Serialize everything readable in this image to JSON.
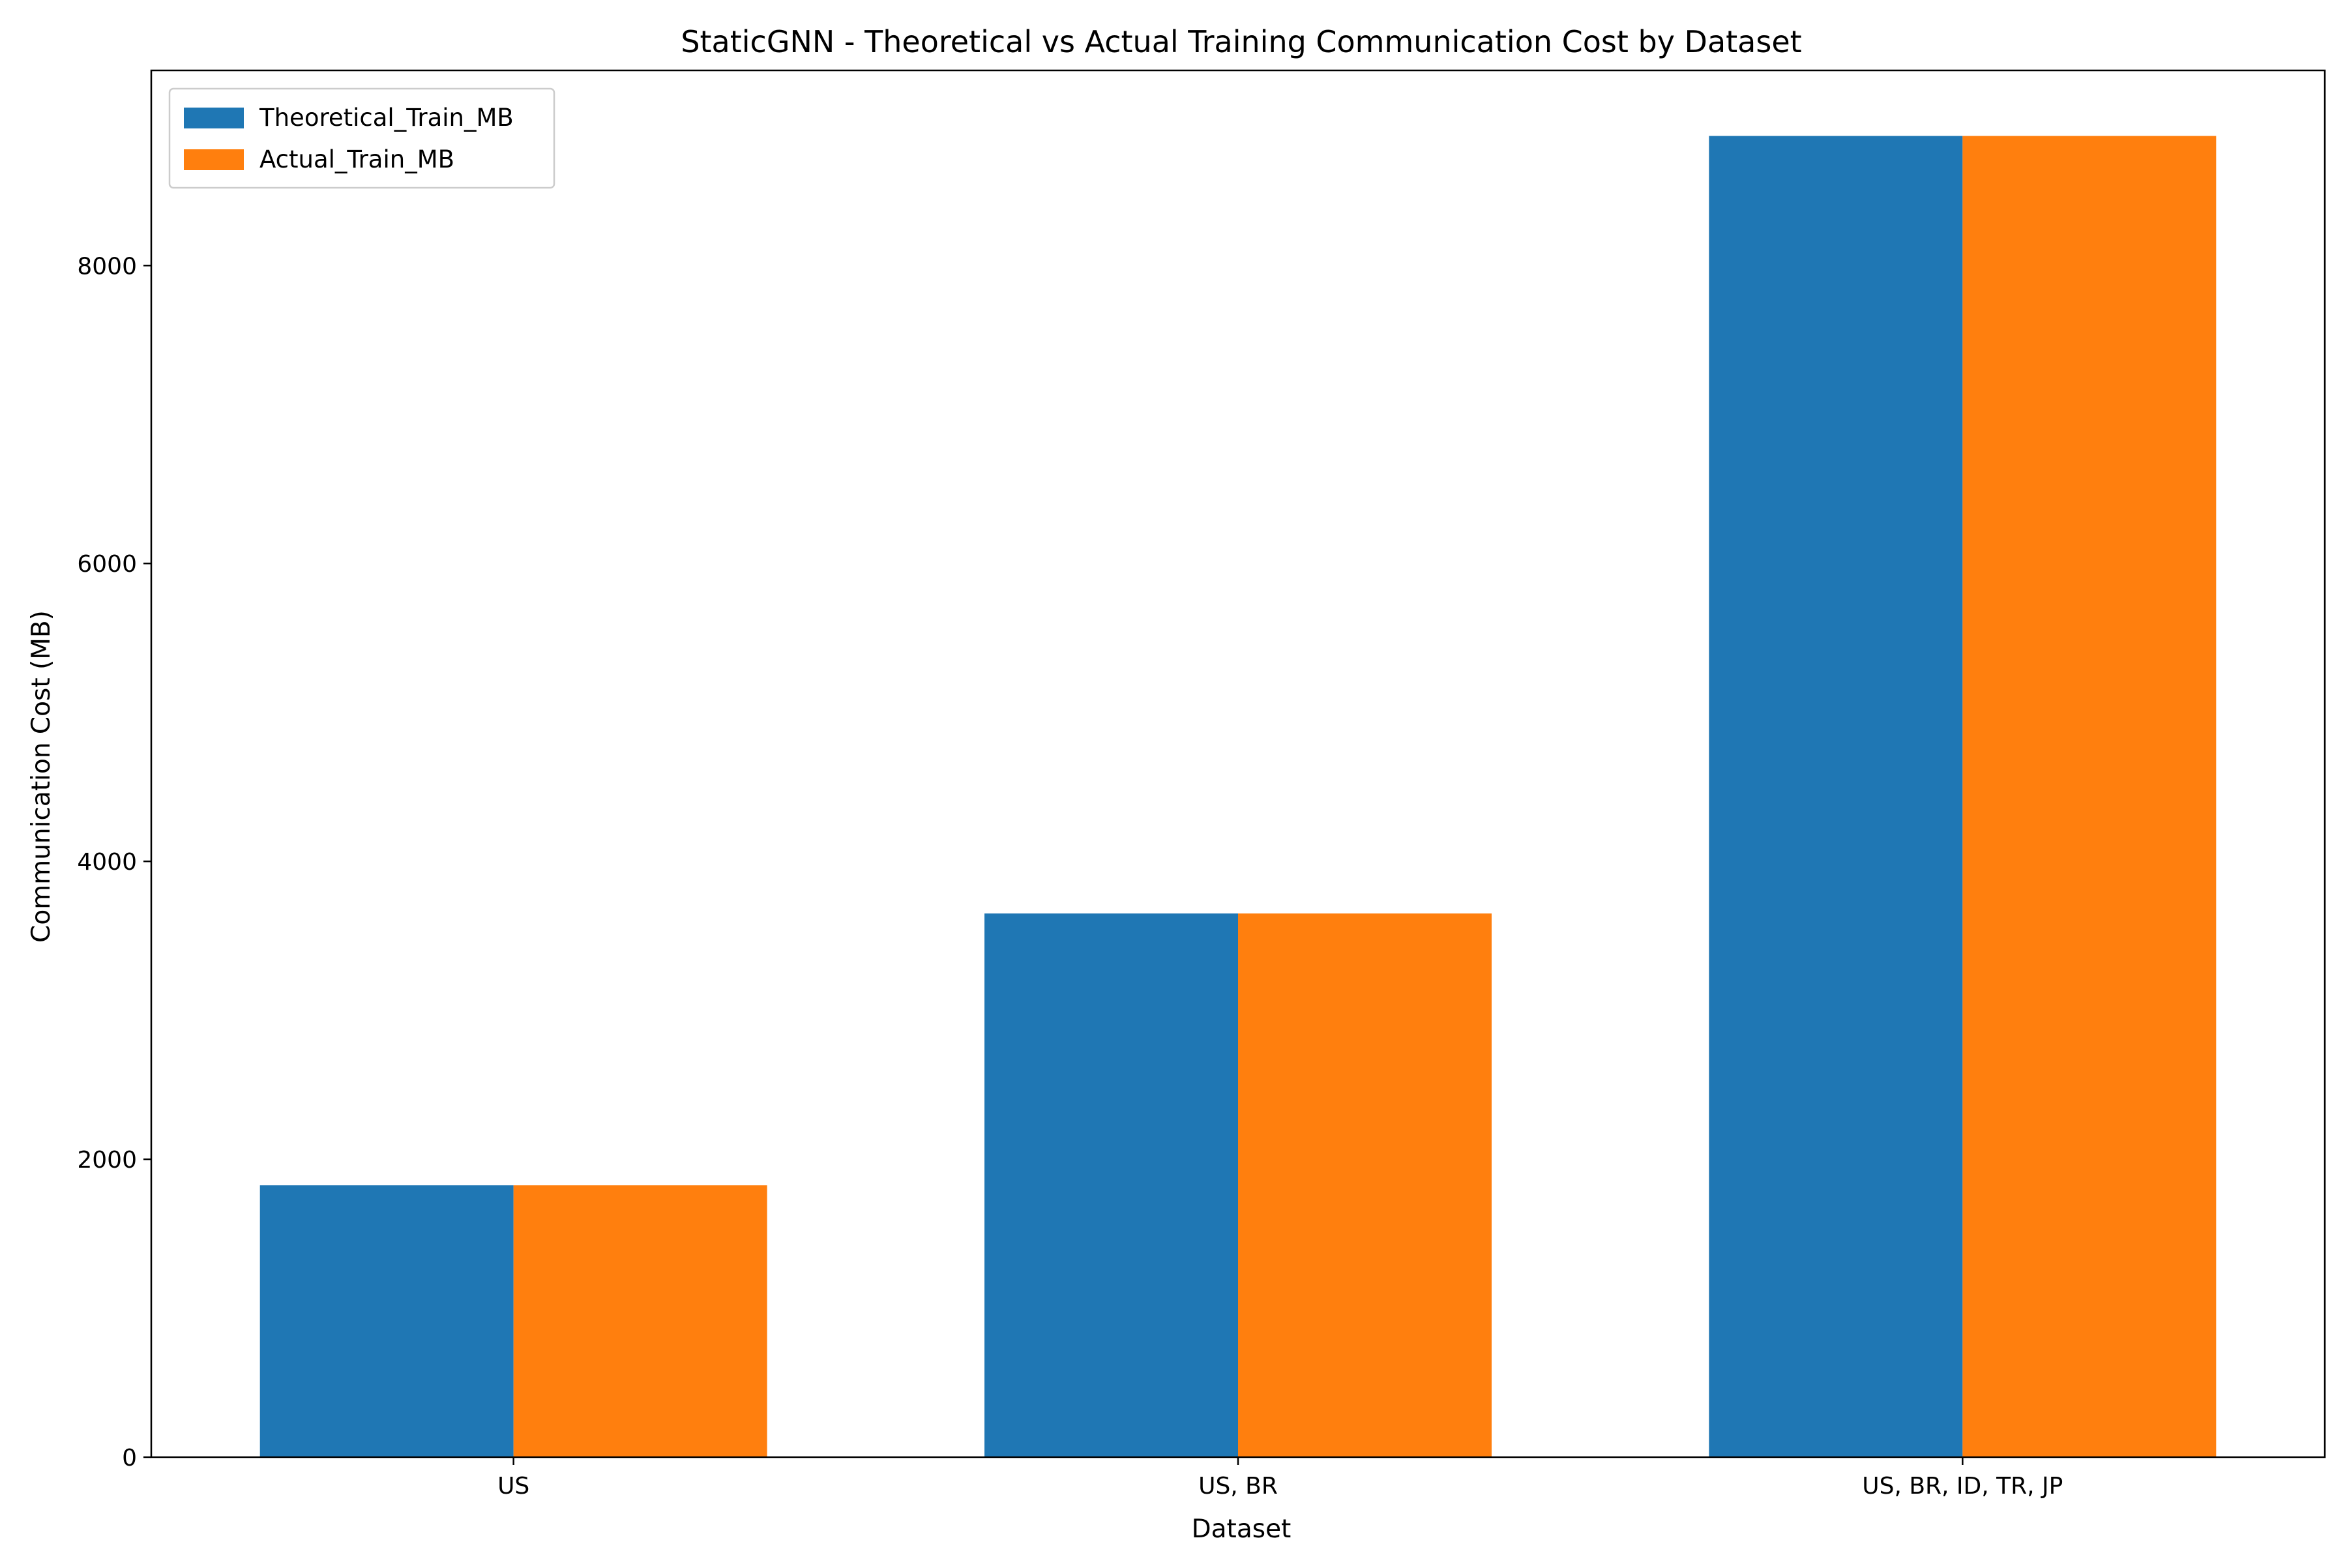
{
  "chart_data": {
    "type": "bar",
    "title": "StaticGNN - Theoretical vs Actual Training Communication Cost by Dataset",
    "xlabel": "Dataset",
    "ylabel": "Communication Cost (MB)",
    "categories": [
      "US",
      "US, BR",
      "US, BR, ID, TR, JP"
    ],
    "series": [
      {
        "name": "Theoretical_Train_MB",
        "color": "#1f77b4",
        "values": [
          1825,
          3650,
          8870
        ]
      },
      {
        "name": "Actual_Train_MB",
        "color": "#ff7f0e",
        "values": [
          1825,
          3650,
          8870
        ]
      }
    ],
    "ylim": [
      0,
      9310
    ],
    "yticks": [
      0,
      2000,
      4000,
      6000,
      8000
    ],
    "ytick_labels": [
      "0",
      "2000",
      "4000",
      "6000",
      "8000"
    ],
    "grid": false,
    "legend_position": "top-left"
  }
}
